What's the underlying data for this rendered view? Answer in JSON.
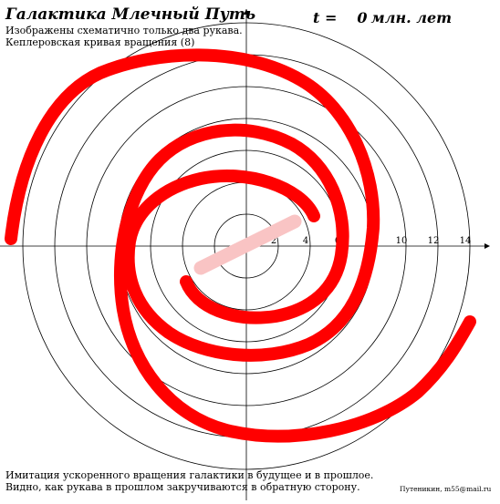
{
  "title": "Галактика Млечный Путь",
  "subtitle_lines": [
    "Изображены схематично только два рукава.",
    "Кеплеровская кривая вращения (8)"
  ],
  "time": {
    "label": "t =",
    "value": "0",
    "unit": "млн. лет"
  },
  "footer_lines": [
    "Имитация ускоренного вращения галактики в будущее и в прошлое.",
    "Видно, как рукава в прошлом закручиваются в обратную сторону."
  ],
  "author": "Путеникин, m55@mail.ru",
  "radius_labels": [
    "2",
    "4",
    "6",
    "8",
    "10",
    "12",
    "14"
  ],
  "colors": {
    "arm": "#ff0000",
    "bar": "#f9c4c4",
    "grid": "#000000"
  }
}
